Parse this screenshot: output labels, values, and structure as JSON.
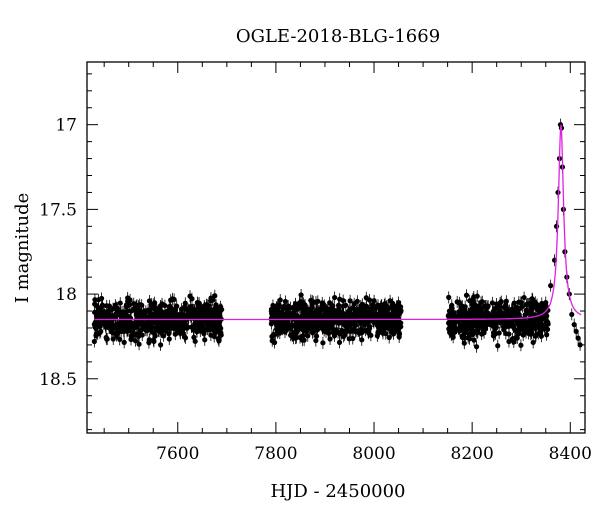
{
  "chart_data": {
    "type": "scatter",
    "title": "OGLE-2018-BLG-1669",
    "xlabel": "HJD - 2450000",
    "ylabel": "I magnitude",
    "xlim": [
      7415,
      8430
    ],
    "ylim": [
      18.82,
      16.63
    ],
    "y_inverted": true,
    "grid": false,
    "x_major_ticks": [
      7600,
      7800,
      8000,
      8200,
      8400
    ],
    "x_tick_labels": [
      "7600",
      "7800",
      "8000",
      "8200",
      "8400"
    ],
    "y_major_ticks": [
      17,
      17.5,
      18,
      18.5
    ],
    "y_tick_labels": [
      "17",
      "17.5",
      "18",
      "18.5"
    ],
    "colors": {
      "points": "#000000",
      "model": "#e020e0"
    },
    "series": [
      {
        "kind": "points-with-errorbars",
        "baseline_mag": 18.15,
        "observing_seasons_hjd": [
          [
            7430,
            7690
          ],
          [
            7790,
            8055
          ],
          [
            8150,
            8420
          ]
        ],
        "points": [
          [
            7430,
            18.28
          ],
          [
            7445,
            18.12
          ],
          [
            7460,
            18.2
          ],
          [
            7475,
            18.08
          ],
          [
            7490,
            18.22
          ],
          [
            7505,
            18.1
          ],
          [
            7520,
            18.25
          ],
          [
            7535,
            18.14
          ],
          [
            7550,
            18.06
          ],
          [
            7565,
            18.3
          ],
          [
            7580,
            18.16
          ],
          [
            7595,
            18.09
          ],
          [
            7610,
            18.23
          ],
          [
            7625,
            18.12
          ],
          [
            7640,
            18.05
          ],
          [
            7655,
            18.27
          ],
          [
            7670,
            18.15
          ],
          [
            7685,
            18.2
          ],
          [
            7795,
            18.24
          ],
          [
            7810,
            18.13
          ],
          [
            7825,
            18.07
          ],
          [
            7840,
            18.26
          ],
          [
            7855,
            18.14
          ],
          [
            7870,
            18.1
          ],
          [
            7885,
            18.21
          ],
          [
            7900,
            18.08
          ],
          [
            7915,
            18.18
          ],
          [
            7930,
            18.03
          ],
          [
            7945,
            18.22
          ],
          [
            7960,
            18.12
          ],
          [
            7975,
            18.27
          ],
          [
            7990,
            18.11
          ],
          [
            8005,
            18.17
          ],
          [
            8020,
            18.09
          ],
          [
            8035,
            18.2
          ],
          [
            8050,
            18.05
          ],
          [
            8155,
            18.22
          ],
          [
            8170,
            18.13
          ],
          [
            8185,
            18.26
          ],
          [
            8200,
            18.1
          ],
          [
            8215,
            18.19
          ],
          [
            8230,
            18.07
          ],
          [
            8245,
            18.24
          ],
          [
            8260,
            18.14
          ],
          [
            8275,
            18.28
          ],
          [
            8290,
            18.11
          ],
          [
            8305,
            18.2
          ],
          [
            8320,
            18.08
          ],
          [
            8335,
            18.16
          ],
          [
            8350,
            18.05
          ],
          [
            8360,
            17.95
          ],
          [
            8368,
            17.8
          ],
          [
            8372,
            17.6
          ],
          [
            8375,
            17.4
          ],
          [
            8378,
            17.2
          ],
          [
            8380,
            17.0
          ],
          [
            8382,
            17.02
          ],
          [
            8384,
            17.25
          ],
          [
            8386,
            17.5
          ],
          [
            8389,
            17.75
          ],
          [
            8393,
            17.9
          ],
          [
            8398,
            18.0
          ],
          [
            8403,
            18.12
          ],
          [
            8408,
            18.18
          ],
          [
            8412,
            18.22
          ],
          [
            8416,
            18.26
          ],
          [
            8420,
            18.3
          ]
        ]
      },
      {
        "kind": "model-curve",
        "baseline_mag": 18.15,
        "peak_mag": 17.0,
        "peak_hjd": 8381
      }
    ]
  }
}
